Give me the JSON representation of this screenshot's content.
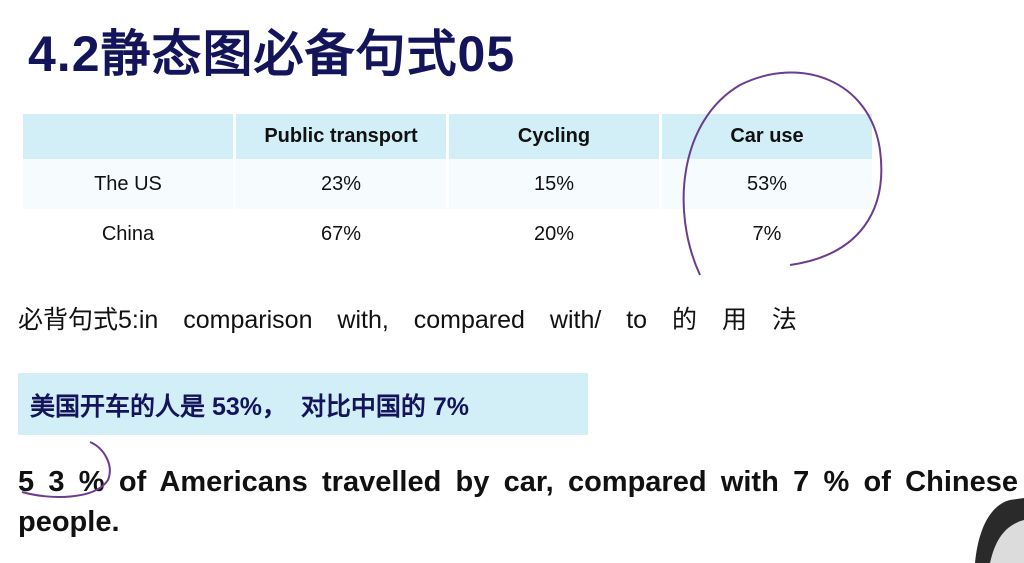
{
  "header": {
    "title": "4.2静态图必备句式05"
  },
  "table": {
    "header": [
      "",
      "Public transport",
      "Cycling",
      "Car use"
    ],
    "rows": [
      [
        "The US",
        "23%",
        "15%",
        "53%"
      ],
      [
        "China",
        "67%",
        "20%",
        "7%"
      ]
    ]
  },
  "note": "必背句式5:in comparison with, compared with/ to 的 用 法",
  "highlight": "美国开车的人是 53%，  对比中国的 7%",
  "example": "5 3 % of Americans travelled by car, compared with 7 % of Chinese people."
}
